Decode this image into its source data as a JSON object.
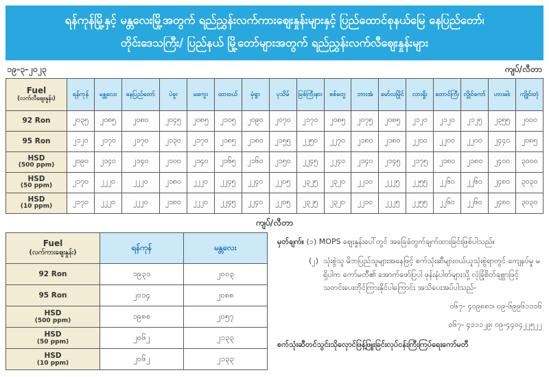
{
  "title": {
    "line1": "ရန်ကုန်မြို့နှင့် မန္တလေးမြို့အတွက် ရည်ညွှန်းလက်ကားဈေးနှုန်းများနှင့် ပြည်ထောင်စုနယ်မြေ နေပြည်တော်၊",
    "line2": "တိုင်းဒေသကြီး/ ပြည်နယ် မြို့တော်များအတွက် ရည်ညွှန်းလက်လီဈေးနှုန်းများ"
  },
  "date": "၁၉-၃-၂၀၂၃",
  "unit_label_top": "ကျပ်/လီတာ",
  "unit_label_mid": "ကျပ်/လီတာ",
  "retail_table": {
    "fuel_header": {
      "line1": "Fuel",
      "line2": "(လက်လီဈေးနှုန်း)"
    },
    "cities": [
      "ရန်ကုန်",
      "မန္တလေး",
      "နေပြည်တော်",
      "ပဲခူး",
      "မကွေး",
      "ထားဝယ်",
      "မုံရွာ",
      "ပုသိမ်",
      "မြစ်ကြီးနား",
      "စစ်တွေ",
      "ဘားအံ",
      "မော်လမြိုင်",
      "လားရှိုး",
      "တောင်ကြီး",
      "လွိုင်ကော်",
      "ဟားခါး",
      "ကျိုင်းတုံ"
    ],
    "rows": [
      {
        "fuel": "92 Ron",
        "fuel_sub": "",
        "values": [
          "၂၀၃၅",
          "၂၀၈၅",
          "၂၀၈၀",
          "၂၀၄၅",
          "၂၀၈၅",
          "၂၁၀၅",
          "၂၀၉၀",
          "၂၀၇၀",
          "၂၁၇၀",
          "၂၀၈၅",
          "၂၀၇၅",
          "၂၀၈၅",
          "၂၁၂၀",
          "၂၁၂၀",
          "၂၁၂၅",
          "၂၃၅၅",
          "၂၀၀၀"
        ]
      },
      {
        "fuel": "95 Ron",
        "fuel_sub": "",
        "values": [
          "၂၁၂၀",
          "၂၁၇၀",
          "၂၁၇၀",
          "၂၁၃၀",
          "၂၁၇၀",
          "၂၁၈၅",
          "၂၁၈၀",
          "၂၁၅၅",
          "၂၂၅၀",
          "၂၂၇၀",
          "၂၁၈၀",
          "၂၁၈၀",
          "၂၂၀၀",
          "၂၂၀၀",
          "၂၂၀၀",
          "၂၄၄၀",
          "၂၀၈၅"
        ]
      },
      {
        "fuel": "HSD",
        "fuel_sub": "(500 ppm)",
        "values": [
          "၂၀၉၀",
          "၂၁၄၀",
          "၂၁၄၀",
          "၂၁၀၀",
          "၂၁၄၀",
          "၂၁၆၅",
          "၂၁၆၀",
          "၂၁၅၀",
          "၂၂၄၅",
          "၂၂၄၀",
          "၂၁၄၀",
          "၂၁၄၅",
          "၂၁၇၅",
          "၂၁၈၀",
          "၂၁၈၀",
          "၂၄၀၀",
          "၃၀၀၀"
        ]
      },
      {
        "fuel": "HSD",
        "fuel_sub": "(50 ppm)",
        "values": [
          "၂၁၇၀",
          "၂၂၂၀",
          "၂၂၂၀",
          "၂၁၈၀",
          "၂၂၂၀",
          "၂၂၄၅",
          "၂၂၄၀",
          "၂၂၀၅",
          "၂၃၂၅",
          "၂၃၂၀",
          "၂၂၁၀",
          "၂၂၂၅",
          "၂၂၅၅",
          "၂၂၆၀",
          "၂၂၆၀",
          "၂၄၈၀",
          "၃၀၃၀"
        ]
      },
      {
        "fuel": "HSD",
        "fuel_sub": "(10 ppm)",
        "values": [
          "၂၁၇၀",
          "၂၂၂၀",
          "၂၂၂၀",
          "၂၁၈၀",
          "၂၂၂၀",
          "၂၂၄၅",
          "၂၂၄၀",
          "၂၂၀၅",
          "၂၃၂၅",
          "၂၃၂၀",
          "၂၂၁၀",
          "၂၂၂၅",
          "၂၂၅၅",
          "၂၂၆၀",
          "၂၂၆၀",
          "၂၄၈၀",
          "၃၀၃၀"
        ]
      }
    ]
  },
  "wholesale_table": {
    "fuel_header": {
      "line1": "Fuel",
      "line2": "(လက်ကားဈေးနှုန်း)"
    },
    "cities": [
      "ရန်ကုန်",
      "မန္တလေး"
    ],
    "rows": [
      {
        "fuel": "92 Ron",
        "fuel_sub": "",
        "values": [
          "၁၉၃၁",
          "၂၀၀၃"
        ]
      },
      {
        "fuel": "95 Ron",
        "fuel_sub": "",
        "values": [
          "၂၀၁၄",
          "၂၀၈၈"
        ]
      },
      {
        "fuel": "HSD",
        "fuel_sub": "(500 ppm)",
        "values": [
          "၁၉၈၈",
          "၂၀၅၇"
        ]
      },
      {
        "fuel": "HSD",
        "fuel_sub": "(50 ppm)",
        "values": [
          "၂၀၆၂",
          "၂၁၃၃"
        ]
      },
      {
        "fuel": "HSD",
        "fuel_sub": "(10 ppm)",
        "values": [
          "၂၀၆၂",
          "၂၁၃၃"
        ]
      }
    ]
  },
  "notes": {
    "label": "မှတ်ချက်။",
    "items": [
      {
        "num": "(၁)",
        "text": "MOPS ဈေးနှုန်းပေါ်တွင် အခြေခံတွက်ချက်ထားခြင်းဖြစ်ပါသည်။"
      },
      {
        "num": "(၂)",
        "text": "သုံးစွဲသူ မိဘပြည်သူများအနေဖြင့် စက်သုံးဆီများဝယ်ယူသုံးစွဲရာတွင် ကျေနပ်မှု မရှိပါက ကော်မတီ၏ အောက်ဖော်ပြပါ ဖုန်းနံပါတ်များသို့ လုံခြုံစိတ်ချစွာဖြင့် သတင်းပေးတိုင်ကြားနိုင်ပါကြောင်း အသိပေးအပ်ပါသည်-"
      }
    ],
    "phones": [
      "၀၆၇- ၄၀၉၈၈၁၊ ၀၉-၆၉၉၆၁၁၁၆",
      "၀၆၇- ၄၁၁၁၂၉၊ ၀၉-၄၄၀၄၂၂၅၂၂"
    ],
    "committee": "စက်သုံးဆီတင်သွင်းသိုလှောင်ဖြန့်ဖြူးခြင်းလုပ်ငန်းကြီးကြပ်ရေးကော်မတီ"
  },
  "colors": {
    "banner_bg": "#29a8e0",
    "banner_text": "#ffffff",
    "header_cell_bg": "#cbe9f7",
    "city_text": "#1b6fae",
    "fuel_col_bg": "#f2ecd4",
    "border": "#595959",
    "value_text": "#3d3d3d"
  }
}
